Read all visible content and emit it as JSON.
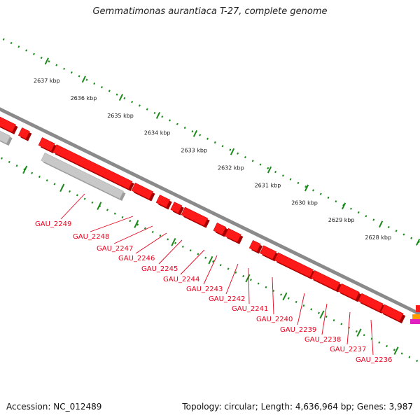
{
  "header": {
    "title": "Gemmatimonas aurantiaca T-27, complete genome"
  },
  "footer": {
    "accession": "Accession: NC_012489",
    "summary": "Topology: circular; Length: 4,636,964 bp; Genes: 3,987"
  },
  "colors": {
    "gene_forward": "#ff1a1a",
    "gene_grey": "#c8c8c8",
    "backbone": "#8a8a8a",
    "ruler": "#1a8a1a",
    "label": "#e8001c",
    "accent_orange": "#ff9a00",
    "accent_magenta": "#e020c0"
  },
  "kbp_ticks": [
    "2637 kbp",
    "2636 kbp",
    "2635 kbp",
    "2634 kbp",
    "2633 kbp",
    "2632 kbp",
    "2631 kbp",
    "2630 kbp",
    "2629 kbp",
    "2628 kbp"
  ],
  "gene_labels": [
    "GAU_2249",
    "GAU_2248",
    "GAU_2247",
    "GAU_2246",
    "GAU_2245",
    "GAU_2244",
    "GAU_2243",
    "GAU_2242",
    "GAU_2241",
    "GAU_2240",
    "GAU_2239",
    "GAU_2238",
    "GAU_2237",
    "GAU_2236"
  ]
}
